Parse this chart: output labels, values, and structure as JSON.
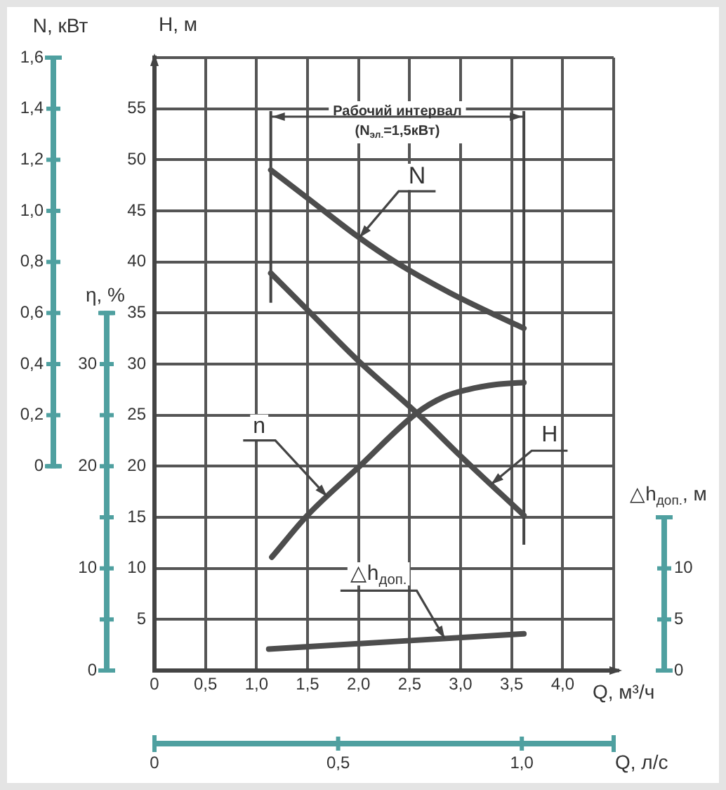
{
  "chart_data": {
    "type": "line",
    "xlabel": "Q, м³/ч",
    "ylabel": "H, м",
    "y2label": "N, кВт",
    "y3label": "η, %",
    "x2label": "Q, л/с",
    "xlim": [
      0,
      4.5
    ],
    "xticks": [
      0,
      {
        "value": 0.5,
        "label": "0,5"
      },
      {
        "value": 1,
        "label": "1,0"
      },
      {
        "value": 1.5,
        "label": "1,5"
      },
      {
        "value": 2,
        "label": "2,0"
      },
      {
        "value": 2.5,
        "label": "2,5"
      },
      {
        "value": 3,
        "label": "3,0"
      },
      {
        "value": 3.5,
        "label": "3,5"
      },
      {
        "value": 4,
        "label": "4,0"
      },
      {
        "value": 4.5,
        "label": null
      }
    ],
    "ylim": [
      0,
      60
    ],
    "yticks": [
      5,
      10,
      15,
      20,
      25,
      30,
      35,
      40,
      45,
      50,
      55,
      {
        "value": 60,
        "label": null
      }
    ],
    "y2lim": [
      0,
      1.6
    ],
    "y2ticks": [
      0,
      {
        "value": 0.2,
        "label": "0,2"
      },
      {
        "value": 0.4,
        "label": "0,4"
      },
      {
        "value": 0.6,
        "label": "0,6"
      },
      {
        "value": 0.8,
        "label": "0,8"
      },
      {
        "value": 1,
        "label": "1,0"
      },
      {
        "value": 1.2,
        "label": "1,2"
      },
      {
        "value": 1.4,
        "label": "1,4"
      },
      {
        "value": 1.6,
        "label": "1,6"
      }
    ],
    "y3lim": [
      0,
      35
    ],
    "y3ticks": [
      0,
      {
        "value": 5,
        "label": null
      },
      10,
      {
        "value": 15,
        "label": null
      },
      20,
      {
        "value": 25,
        "label": null
      },
      30,
      {
        "value": 35,
        "label": null
      }
    ],
    "x2lim": [
      0,
      1.25
    ],
    "x2ticks": [
      0,
      {
        "value": 0.5,
        "label": "0,5"
      },
      {
        "value": 1,
        "label": "1,0"
      },
      {
        "value": 1.25,
        "label": null
      }
    ],
    "series": [
      {
        "name": "H",
        "color": "#4d4d4d",
        "x": [
          1.14,
          1.5,
          2.0,
          2.57,
          3.0,
          3.62
        ],
        "values": [
          38.9,
          35.3,
          30.3,
          25.2,
          21.0,
          15.2
        ]
      },
      {
        "name": "N",
        "color": "#4d4d4d",
        "axis": "y2",
        "x": [
          1.14,
          1.5,
          1.99,
          2.36,
          2.89,
          3.35,
          3.62
        ],
        "values": [
          1.16,
          1.05,
          0.9,
          0.8,
          0.68,
          0.59,
          0.54
        ]
      },
      {
        "name": "n",
        "color": "#4d4d4d",
        "axis": "y3",
        "x": [
          1.15,
          1.5,
          2.0,
          2.57,
          2.84,
          3.07,
          3.35,
          3.62
        ],
        "values": [
          11.1,
          15.2,
          19.9,
          25.2,
          26.8,
          27.5,
          28.0,
          28.2
        ]
      },
      {
        "name": "△h$_{доп.}$",
        "color": "#4d4d4d",
        "x": [
          1.12,
          3.62
        ],
        "values": [
          2.1,
          3.6
        ]
      }
    ],
    "ref_lines": [
      {
        "axis": "x",
        "value": 1.14
      },
      {
        "axis": "x",
        "value": 3.62
      }
    ],
    "annotations": [
      "Рабочий интервал\n(N$_{эл.}$=1,5кВт)",
      "△h$_{доп.}$, м",
      "10",
      "5",
      "0"
    ],
    "grid": true,
    "legend": false,
    "marker": "none",
    "line_style": "solid"
  }
}
